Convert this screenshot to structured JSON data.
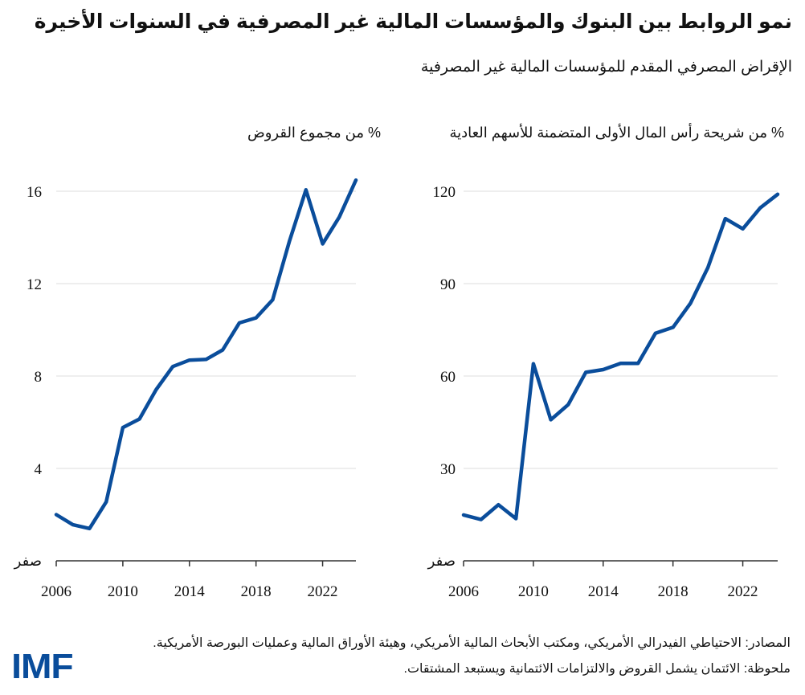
{
  "title": "نمو الروابط بين البنوك والمؤسسات المالية غير المصرفية في السنوات الأخيرة",
  "subtitle": "الإقراض المصرفي المقدم للمؤسسات المالية غير المصرفية",
  "footer": {
    "sources": "المصادر: الاحتياطي الفيدرالي الأمريكي، ومكتب الأبحاث المالية الأمريكي، وهيئة الأوراق المالية وعمليات البورصة الأمريكية.",
    "note": "ملحوظة: الائتمان يشمل القروض والالتزامات الائتمانية ويستبعد المشتقات.",
    "logo": "IMF"
  },
  "colors": {
    "line": "#0a4d9b",
    "grid": "#dddddd",
    "axis": "#333333"
  },
  "chart_data": [
    {
      "type": "line",
      "position": "left",
      "ylabel": "% من مجموع القروض",
      "x": [
        2006,
        2007,
        2008,
        2009,
        2010,
        2011,
        2012,
        2013,
        2014,
        2015,
        2016,
        2017,
        2018,
        2019,
        2020,
        2021,
        2022,
        2023,
        2024
      ],
      "values": [
        2.0,
        1.56,
        1.4,
        2.55,
        5.77,
        6.14,
        7.41,
        8.41,
        8.69,
        8.72,
        9.13,
        10.3,
        10.52,
        11.3,
        13.82,
        16.06,
        13.72,
        14.88,
        16.48
      ],
      "ylim": [
        0,
        16
      ],
      "yticks": [
        0,
        4,
        8,
        12,
        16
      ],
      "ytick_labels": [
        "صفر",
        "4",
        "8",
        "12",
        "16"
      ],
      "xticks": [
        2006,
        2010,
        2014,
        2018,
        2022
      ],
      "xtick_labels": [
        "2006",
        "2010",
        "2014",
        "2018",
        "2022"
      ],
      "grid": true
    },
    {
      "type": "line",
      "position": "right",
      "ylabel": "% من شريحة رأس المال الأولى المتضمنة للأسهم العادية",
      "x": [
        2006,
        2007,
        2008,
        2009,
        2010,
        2011,
        2012,
        2013,
        2014,
        2015,
        2016,
        2017,
        2018,
        2019,
        2020,
        2021,
        2022,
        2023,
        2024
      ],
      "values": [
        14.9,
        13.4,
        18.2,
        13.7,
        64.0,
        45.8,
        50.7,
        61.2,
        62.1,
        64.1,
        64.1,
        73.9,
        75.8,
        83.6,
        95.2,
        111.1,
        107.8,
        114.6,
        119.0
      ],
      "ylim": [
        0,
        120
      ],
      "yticks": [
        0,
        30,
        60,
        90,
        120
      ],
      "ytick_labels": [
        "صفر",
        "30",
        "60",
        "90",
        "120"
      ],
      "xticks": [
        2006,
        2010,
        2014,
        2018,
        2022
      ],
      "xtick_labels": [
        "2006",
        "2010",
        "2014",
        "2018",
        "2022"
      ],
      "grid": true
    }
  ]
}
